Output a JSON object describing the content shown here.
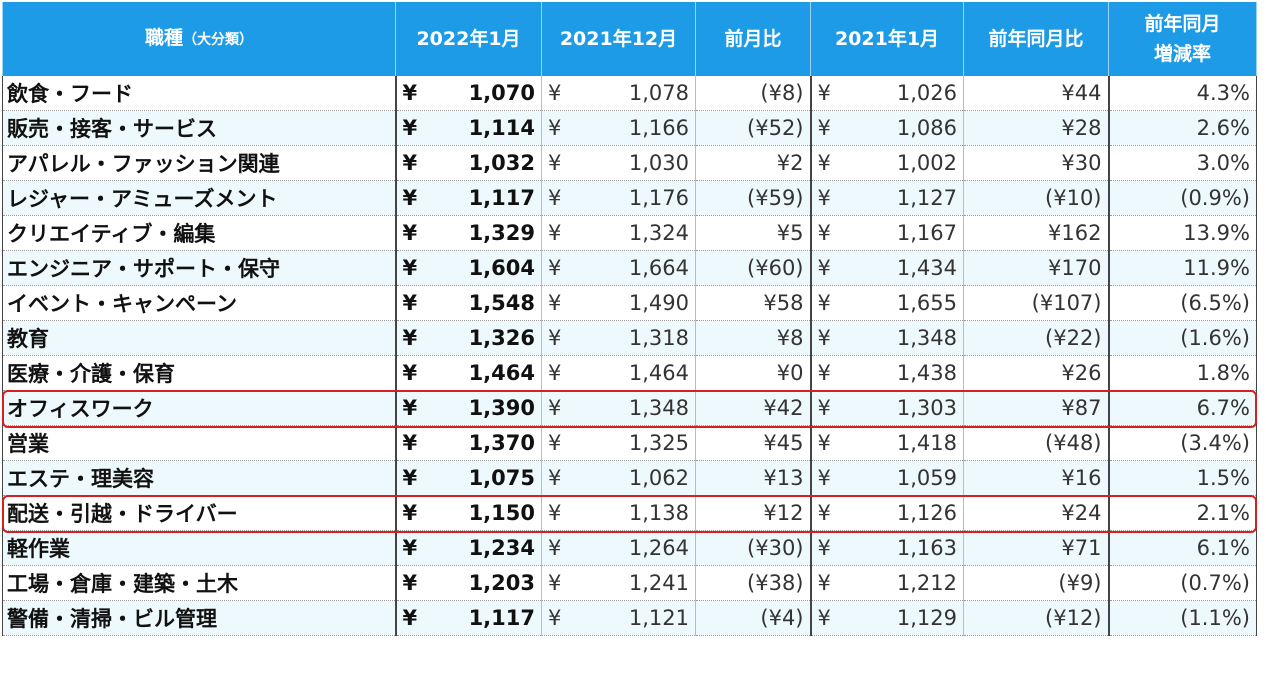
{
  "headers": {
    "category": "職種",
    "category_sub": "（大分類）",
    "jan2022": "2022年1月",
    "dec2021": "2021年12月",
    "mom": "前月比",
    "jan2021": "2021年1月",
    "yoy": "前年同月比",
    "rate_line1": "前年同月",
    "rate_line2": "増減率"
  },
  "currency_symbol": "¥",
  "rows": [
    {
      "category": "飲食・フード",
      "jan2022": "1,070",
      "dec2021": "1,078",
      "mom": "(¥8)",
      "jan2021": "1,026",
      "yoy": "¥44",
      "rate": "4.3%",
      "mom_neg": true,
      "yoy_neg": false,
      "rate_neg": false,
      "highlight": false
    },
    {
      "category": "販売・接客・サービス",
      "jan2022": "1,114",
      "dec2021": "1,166",
      "mom": "(¥52)",
      "jan2021": "1,086",
      "yoy": "¥28",
      "rate": "2.6%",
      "mom_neg": true,
      "yoy_neg": false,
      "rate_neg": false,
      "highlight": false
    },
    {
      "category": "アパレル・ファッション関連",
      "jan2022": "1,032",
      "dec2021": "1,030",
      "mom": "¥2",
      "jan2021": "1,002",
      "yoy": "¥30",
      "rate": "3.0%",
      "mom_neg": false,
      "yoy_neg": false,
      "rate_neg": false,
      "highlight": false
    },
    {
      "category": "レジャー・アミューズメント",
      "jan2022": "1,117",
      "dec2021": "1,176",
      "mom": "(¥59)",
      "jan2021": "1,127",
      "yoy": "(¥10)",
      "rate": "(0.9%)",
      "mom_neg": true,
      "yoy_neg": true,
      "rate_neg": true,
      "highlight": false
    },
    {
      "category": "クリエイティブ・編集",
      "jan2022": "1,329",
      "dec2021": "1,324",
      "mom": "¥5",
      "jan2021": "1,167",
      "yoy": "¥162",
      "rate": "13.9%",
      "mom_neg": false,
      "yoy_neg": false,
      "rate_neg": false,
      "highlight": false
    },
    {
      "category": "エンジニア・サポート・保守",
      "jan2022": "1,604",
      "dec2021": "1,664",
      "mom": "(¥60)",
      "jan2021": "1,434",
      "yoy": "¥170",
      "rate": "11.9%",
      "mom_neg": true,
      "yoy_neg": false,
      "rate_neg": false,
      "highlight": false
    },
    {
      "category": "イベント・キャンペーン",
      "jan2022": "1,548",
      "dec2021": "1,490",
      "mom": "¥58",
      "jan2021": "1,655",
      "yoy": "(¥107)",
      "rate": "(6.5%)",
      "mom_neg": false,
      "yoy_neg": true,
      "rate_neg": true,
      "highlight": false
    },
    {
      "category": "教育",
      "jan2022": "1,326",
      "dec2021": "1,318",
      "mom": "¥8",
      "jan2021": "1,348",
      "yoy": "(¥22)",
      "rate": "(1.6%)",
      "mom_neg": false,
      "yoy_neg": true,
      "rate_neg": true,
      "highlight": false
    },
    {
      "category": "医療・介護・保育",
      "jan2022": "1,464",
      "dec2021": "1,464",
      "mom": "¥0",
      "jan2021": "1,438",
      "yoy": "¥26",
      "rate": "1.8%",
      "mom_neg": false,
      "yoy_neg": false,
      "rate_neg": false,
      "highlight": false
    },
    {
      "category": "オフィスワーク",
      "jan2022": "1,390",
      "dec2021": "1,348",
      "mom": "¥42",
      "jan2021": "1,303",
      "yoy": "¥87",
      "rate": "6.7%",
      "mom_neg": false,
      "yoy_neg": false,
      "rate_neg": false,
      "highlight": true
    },
    {
      "category": "営業",
      "jan2022": "1,370",
      "dec2021": "1,325",
      "mom": "¥45",
      "jan2021": "1,418",
      "yoy": "(¥48)",
      "rate": "(3.4%)",
      "mom_neg": false,
      "yoy_neg": true,
      "rate_neg": true,
      "highlight": false
    },
    {
      "category": "エステ・理美容",
      "jan2022": "1,075",
      "dec2021": "1,062",
      "mom": "¥13",
      "jan2021": "1,059",
      "yoy": "¥16",
      "rate": "1.5%",
      "mom_neg": false,
      "yoy_neg": false,
      "rate_neg": false,
      "highlight": false
    },
    {
      "category": "配送・引越・ドライバー",
      "jan2022": "1,150",
      "dec2021": "1,138",
      "mom": "¥12",
      "jan2021": "1,126",
      "yoy": "¥24",
      "rate": "2.1%",
      "mom_neg": false,
      "yoy_neg": false,
      "rate_neg": false,
      "highlight": true
    },
    {
      "category": "軽作業",
      "jan2022": "1,234",
      "dec2021": "1,264",
      "mom": "(¥30)",
      "jan2021": "1,163",
      "yoy": "¥71",
      "rate": "6.1%",
      "mom_neg": true,
      "yoy_neg": false,
      "rate_neg": false,
      "highlight": false
    },
    {
      "category": "工場・倉庫・建築・土木",
      "jan2022": "1,203",
      "dec2021": "1,241",
      "mom": "(¥38)",
      "jan2021": "1,212",
      "yoy": "(¥9)",
      "rate": "(0.7%)",
      "mom_neg": true,
      "yoy_neg": true,
      "rate_neg": true,
      "highlight": false
    },
    {
      "category": "警備・清掃・ビル管理",
      "jan2022": "1,117",
      "dec2021": "1,121",
      "mom": "(¥4)",
      "jan2021": "1,129",
      "yoy": "(¥12)",
      "rate": "(1.1%)",
      "mom_neg": true,
      "yoy_neg": true,
      "rate_neg": true,
      "highlight": false
    }
  ],
  "colors": {
    "header_bg": "#1e9be6",
    "header_text": "#ffffff",
    "row_alt_bg": "#eef9fd",
    "negative_text": "#e52020",
    "highlight_border": "#d81e1e"
  }
}
